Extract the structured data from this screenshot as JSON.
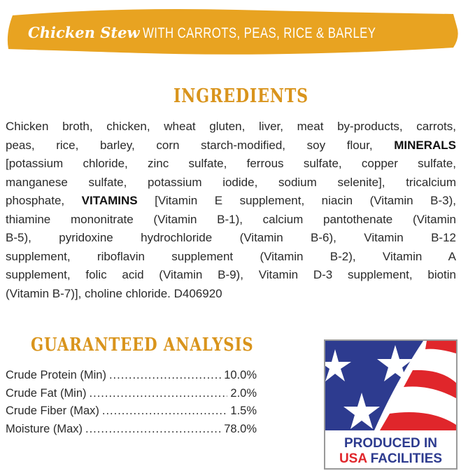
{
  "banner": {
    "title_script": "Chicken Stew",
    "title_caps": "WITH CARROTS, PEAS, RICE & BARLEY",
    "color": "#e8a321"
  },
  "ingredients": {
    "heading": "INGREDIENTS",
    "lines": [
      [
        {
          "t": "Chicken broth, chicken, wheat gluten, liver, meat by-products, carrots,"
        }
      ],
      [
        {
          "t": "peas, rice, barley, corn starch-modified, soy flour, "
        },
        {
          "t": "MINERALS",
          "b": true
        }
      ],
      [
        {
          "t": "[potassium chloride, zinc sulfate, ferrous sulfate, copper sulfate,"
        }
      ],
      [
        {
          "t": "manganese sulfate, potassium iodide, sodium selenite], tricalcium"
        }
      ],
      [
        {
          "t": "phosphate, "
        },
        {
          "t": "VITAMINS",
          "b": true
        },
        {
          "t": " [Vitamin E supplement, niacin (Vitamin B-3),"
        }
      ],
      [
        {
          "t": "thiamine mononitrate (Vitamin B-1), calcium pantothenate (Vitamin"
        }
      ],
      [
        {
          "t": "B-5), pyridoxine hydrochloride (Vitamin B-6), Vitamin B-12"
        }
      ],
      [
        {
          "t": "supplement, riboflavin supplement (Vitamin B-2), Vitamin A"
        }
      ],
      [
        {
          "t": "supplement, folic acid (Vitamin B-9), Vitamin D-3 supplement, biotin"
        }
      ],
      [
        {
          "t": "(Vitamin B-7)], choline chloride.    D406920"
        }
      ]
    ]
  },
  "analysis": {
    "heading": "GUARANTEED ANALYSIS",
    "rows": [
      {
        "label": "Crude Protein (Min)",
        "value": "10.0%"
      },
      {
        "label": "Crude Fat (Min)",
        "value": "2.0%"
      },
      {
        "label": "Crude Fiber (Max)",
        "value": "1.5%"
      },
      {
        "label": "Moisture (Max)",
        "value": "78.0%"
      }
    ]
  },
  "badge": {
    "line1": "PRODUCED IN",
    "line2a": "USA",
    "line2b": "FACILITIES",
    "blue": "#2d3b8f",
    "red": "#e0262b"
  }
}
